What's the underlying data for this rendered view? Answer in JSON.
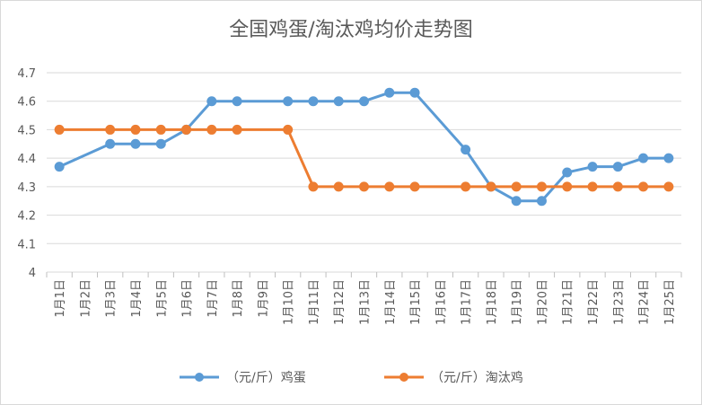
{
  "chart_data": {
    "type": "line",
    "title": "全国鸡蛋/淘汰鸡均价走势图",
    "categories": [
      "1月1日",
      "1月2日",
      "1月3日",
      "1月4日",
      "1月5日",
      "1月6日",
      "1月7日",
      "1月8日",
      "1月9日",
      "1月10日",
      "1月11日",
      "1月12日",
      "1月13日",
      "1月14日",
      "1月15日",
      "1月16日",
      "1月17日",
      "1月18日",
      "1月19日",
      "1月20日",
      "1月21日",
      "1月22日",
      "1月23日",
      "1月24日",
      "1月25日"
    ],
    "ylim": [
      4,
      4.7
    ],
    "yticks": [
      "4",
      "4.1",
      "4.2",
      "4.3",
      "4.4",
      "4.5",
      "4.6",
      "4.7"
    ],
    "grid": true,
    "legend": "bottom",
    "series": [
      {
        "name": "（元/斤）鸡蛋",
        "color": "#5b9bd5",
        "values": [
          4.37,
          null,
          4.45,
          4.45,
          4.45,
          4.5,
          4.6,
          4.6,
          null,
          4.6,
          4.6,
          4.6,
          4.6,
          4.63,
          4.63,
          null,
          4.43,
          4.3,
          4.25,
          4.25,
          4.35,
          4.37,
          4.37,
          4.4,
          4.4
        ]
      },
      {
        "name": "（元/斤）淘汰鸡",
        "color": "#ed7d31",
        "values": [
          4.5,
          null,
          4.5,
          4.5,
          4.5,
          4.5,
          4.5,
          4.5,
          null,
          4.5,
          4.3,
          4.3,
          4.3,
          4.3,
          4.3,
          null,
          4.3,
          4.3,
          4.3,
          4.3,
          4.3,
          4.3,
          4.3,
          4.3,
          4.3
        ]
      }
    ]
  }
}
